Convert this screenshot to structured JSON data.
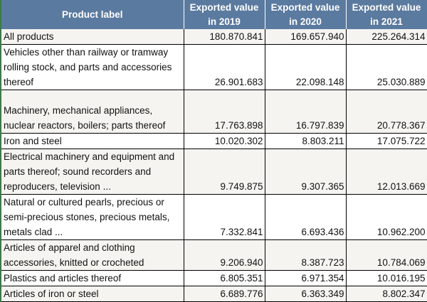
{
  "table": {
    "headers": [
      "Product label",
      "Exported value in 2019",
      "Exported value in 2020",
      "Exported value in 2021"
    ],
    "header_lines": [
      [
        "Product label"
      ],
      [
        "Exported value",
        "in 2019"
      ],
      [
        "Exported value",
        "in 2020"
      ],
      [
        "Exported value",
        "in 2021"
      ]
    ],
    "rows": [
      {
        "label": "All products",
        "v2019": "180.870.841",
        "v2020": "169.657.940",
        "v2021": "225.264.314"
      },
      {
        "label": "Vehicles other than railway or tramway rolling stock, and parts and accessories thereof",
        "v2019": "26.901.683",
        "v2020": "22.098.148",
        "v2021": "25.030.889"
      },
      {
        "label": "Machinery, mechanical appliances, nuclear reactors, boilers; parts thereof",
        "v2019": "17.763.898",
        "v2020": "16.797.839",
        "v2021": "20.778.367"
      },
      {
        "label": "Iron and steel",
        "v2019": "10.020.302",
        "v2020": "8.803.211",
        "v2021": "17.075.722"
      },
      {
        "label": "Electrical machinery and equipment and parts thereof; sound recorders and reproducers, television ...",
        "v2019": "9.749.875",
        "v2020": "9.307.365",
        "v2021": "12.013.669"
      },
      {
        "label": "Natural or cultured pearls, precious or semi-precious stones, precious metals, metals clad ...",
        "v2019": "7.332.841",
        "v2020": "6.693.436",
        "v2021": "10.962.200"
      },
      {
        "label": "Articles of apparel and clothing accessories, knitted or crocheted",
        "v2019": "9.206.940",
        "v2020": "8.387.723",
        "v2021": "10.784.069"
      },
      {
        "label": "Plastics and articles thereof",
        "v2019": "6.805.351",
        "v2020": "6.971.354",
        "v2021": "10.016.195"
      },
      {
        "label": "Articles of iron or steel",
        "v2019": "6.689.776",
        "v2020": "6.363.349",
        "v2021": "8.802.347"
      }
    ]
  },
  "colors": {
    "header_bg": "#5b7a9f",
    "alt_row_bg": "#f5f4f0"
  }
}
